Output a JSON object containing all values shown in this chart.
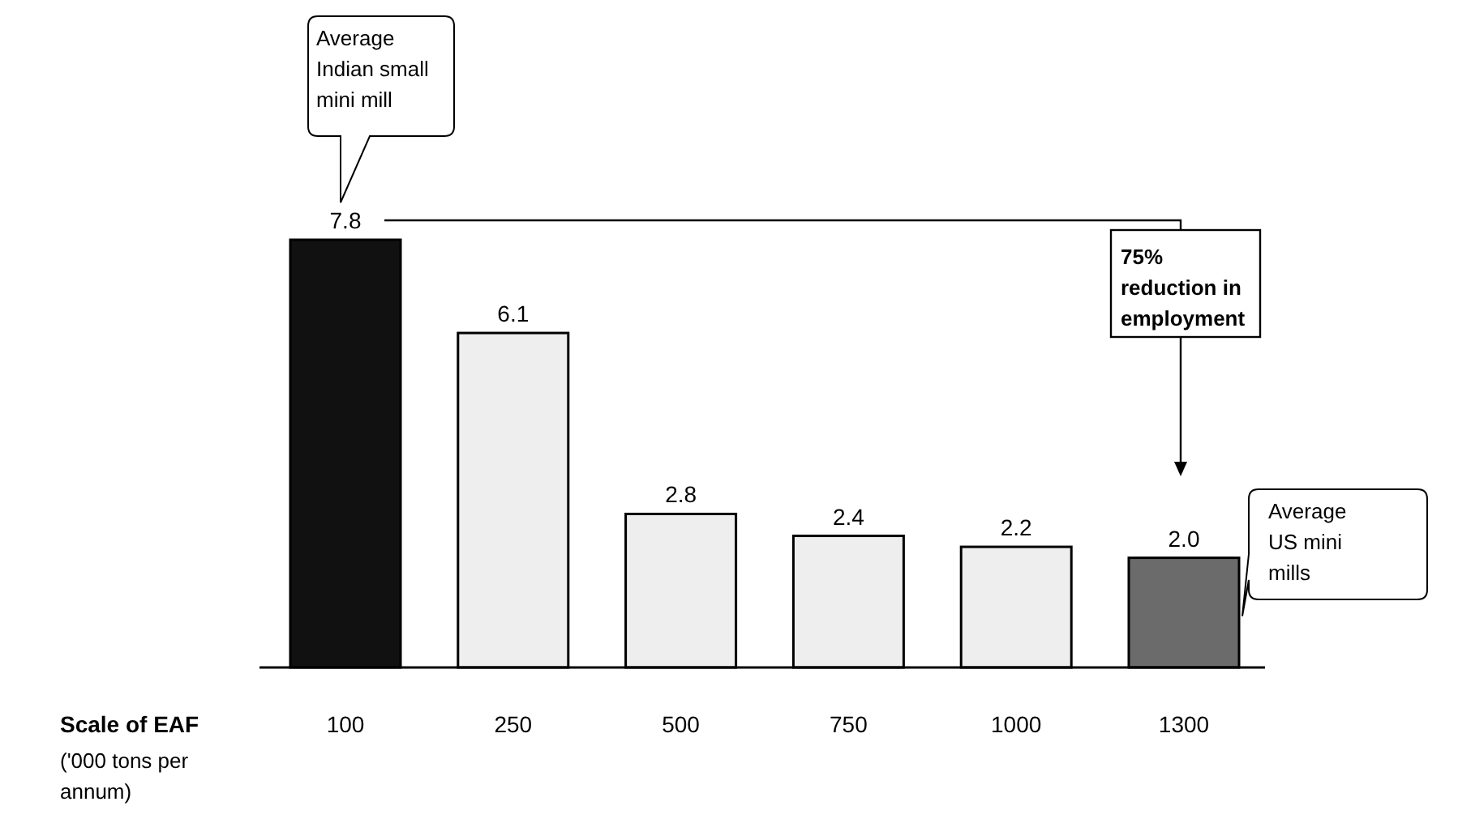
{
  "chart_data": {
    "type": "bar",
    "categories": [
      "100",
      "250",
      "500",
      "750",
      "1000",
      "1300"
    ],
    "values": [
      7.8,
      6.1,
      2.8,
      2.4,
      2.2,
      2.0
    ],
    "colors": [
      "#111111",
      "#eeeeee",
      "#eeeeee",
      "#eeeeee",
      "#eeeeee",
      "#6b6b6b"
    ],
    "value_labels": [
      "7.8",
      "6.1",
      "2.8",
      "2.4",
      "2.2",
      "2.0"
    ],
    "xlabel": "Scale of EAF",
    "annotations": [
      "Average Indian small mini mill",
      "75% reduction in employment",
      "Average US mini mills",
      "('000 tons per annum)"
    ]
  }
}
